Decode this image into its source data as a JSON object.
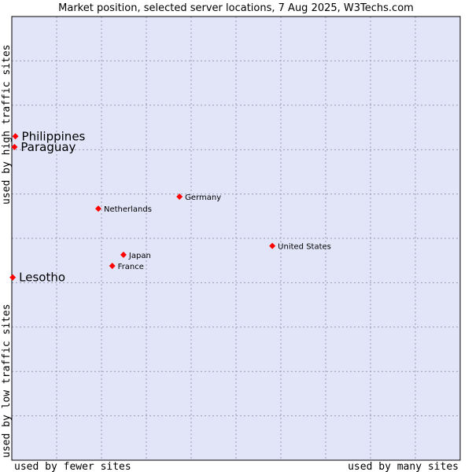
{
  "chart_data": {
    "type": "scatter",
    "title": "Market position, selected server locations, 7 Aug 2025, W3Techs.com",
    "xlabel_low": "used by fewer sites",
    "xlabel_high": "used by many sites",
    "ylabel_low": "used by low traffic sites",
    "ylabel_high": "used by high traffic sites",
    "xlim": [
      0,
      100
    ],
    "ylim": [
      0,
      100
    ],
    "grid": true,
    "colors": {
      "plot_background": "#e2e4f8",
      "grid": "#9a9ab0",
      "marker": "#ff0000",
      "border": "#000000"
    },
    "points": [
      {
        "label": "Philippines",
        "x": 0.8,
        "y": 73.0,
        "size": "large"
      },
      {
        "label": "Paraguay",
        "x": 0.6,
        "y": 70.6,
        "size": "large"
      },
      {
        "label": "Germany",
        "x": 37.4,
        "y": 59.4,
        "size": "small"
      },
      {
        "label": "Netherlands",
        "x": 19.3,
        "y": 56.7,
        "size": "small"
      },
      {
        "label": "United States",
        "x": 58.1,
        "y": 48.3,
        "size": "small"
      },
      {
        "label": "Japan",
        "x": 24.9,
        "y": 46.3,
        "size": "small"
      },
      {
        "label": "France",
        "x": 22.4,
        "y": 43.8,
        "size": "small"
      },
      {
        "label": "Lesotho",
        "x": 0.2,
        "y": 41.2,
        "size": "large"
      }
    ]
  }
}
